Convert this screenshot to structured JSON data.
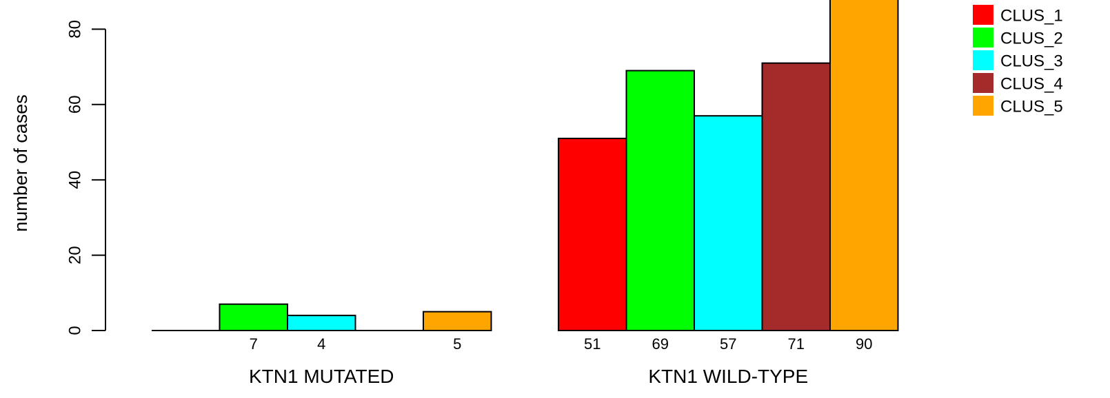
{
  "chart_data": {
    "type": "bar",
    "title": "",
    "xlabel": "",
    "ylabel": "number of cases",
    "ylim": [
      0,
      90
    ],
    "y_ticks": [
      0,
      20,
      40,
      60,
      80
    ],
    "grid": false,
    "legend_position": "top-right",
    "categories": [
      "KTN1 MUTATED",
      "KTN1 WILD-TYPE"
    ],
    "series": [
      {
        "name": "CLUS_1",
        "color": "#ff0000",
        "values": [
          0,
          51
        ],
        "labels": [
          "",
          "51"
        ]
      },
      {
        "name": "CLUS_2",
        "color": "#00ff00",
        "values": [
          7,
          69
        ],
        "labels": [
          "7",
          "69"
        ]
      },
      {
        "name": "CLUS_3",
        "color": "#00ffff",
        "values": [
          4,
          57
        ],
        "labels": [
          "4",
          "57"
        ]
      },
      {
        "name": "CLUS_4",
        "color": "#a52a2a",
        "values": [
          0,
          71
        ],
        "labels": [
          "",
          "71"
        ]
      },
      {
        "name": "CLUS_5",
        "color": "#ffa500",
        "values": [
          5,
          90
        ],
        "labels": [
          "5",
          "90"
        ]
      }
    ]
  }
}
